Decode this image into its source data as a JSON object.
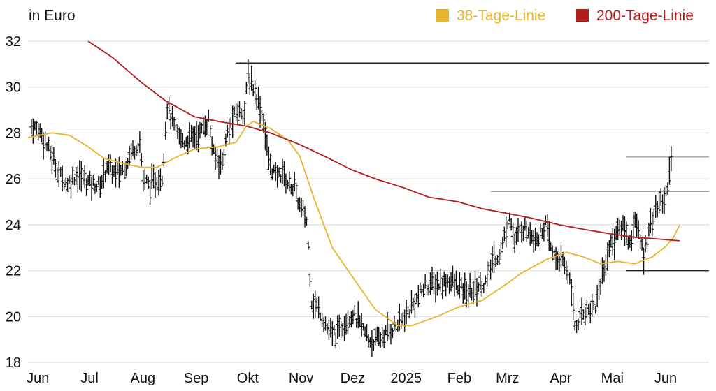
{
  "chart_data": {
    "type": "line",
    "unit_label": "in Euro",
    "legend_position": "top-right",
    "grid": "horizontal",
    "ylim": [
      18,
      32
    ],
    "yticks": [
      18,
      20,
      22,
      24,
      26,
      28,
      30,
      32
    ],
    "xlim": [
      "2024-05-27",
      "2025-06-27"
    ],
    "x_ticks": [
      {
        "label": "Jun",
        "date": "2024-06-01"
      },
      {
        "label": "Jul",
        "date": "2024-07-01"
      },
      {
        "label": "Aug",
        "date": "2024-08-01"
      },
      {
        "label": "Sep",
        "date": "2024-09-01"
      },
      {
        "label": "Okt",
        "date": "2024-10-01"
      },
      {
        "label": "Nov",
        "date": "2024-11-01"
      },
      {
        "label": "Dez",
        "date": "2024-12-01"
      },
      {
        "label": "2025",
        "date": "2025-01-01"
      },
      {
        "label": "Feb",
        "date": "2025-02-01"
      },
      {
        "label": "Mrz",
        "date": "2025-03-01"
      },
      {
        "label": "Apr",
        "date": "2025-04-01"
      },
      {
        "label": "Mai",
        "date": "2025-05-01"
      },
      {
        "label": "Jun",
        "date": "2025-06-01"
      }
    ],
    "series": [
      {
        "name": "38-Tage-Linie",
        "color": "#e9b52c",
        "points": [
          [
            "2024-05-27",
            27.8
          ],
          [
            "2024-06-10",
            28.0
          ],
          [
            "2024-06-20",
            27.9
          ],
          [
            "2024-07-01",
            27.4
          ],
          [
            "2024-07-10",
            26.9
          ],
          [
            "2024-07-20",
            26.7
          ],
          [
            "2024-08-01",
            26.5
          ],
          [
            "2024-08-10",
            26.5
          ],
          [
            "2024-08-20",
            26.9
          ],
          [
            "2024-09-01",
            27.3
          ],
          [
            "2024-09-15",
            27.4
          ],
          [
            "2024-09-25",
            27.6
          ],
          [
            "2024-10-01",
            28.3
          ],
          [
            "2024-10-05",
            28.5
          ],
          [
            "2024-10-15",
            28.2
          ],
          [
            "2024-10-25",
            27.7
          ],
          [
            "2024-11-01",
            27.0
          ],
          [
            "2024-11-10",
            25.0
          ],
          [
            "2024-11-20",
            23.0
          ],
          [
            "2024-12-01",
            21.8
          ],
          [
            "2024-12-15",
            20.3
          ],
          [
            "2024-12-28",
            19.6
          ],
          [
            "2025-01-05",
            19.6
          ],
          [
            "2025-01-20",
            20.0
          ],
          [
            "2025-02-01",
            20.4
          ],
          [
            "2025-02-15",
            20.7
          ],
          [
            "2025-03-01",
            21.4
          ],
          [
            "2025-03-10",
            21.9
          ],
          [
            "2025-03-25",
            22.5
          ],
          [
            "2025-04-05",
            22.8
          ],
          [
            "2025-04-15",
            22.6
          ],
          [
            "2025-04-25",
            22.3
          ],
          [
            "2025-05-05",
            22.4
          ],
          [
            "2025-05-15",
            22.3
          ],
          [
            "2025-05-25",
            22.6
          ],
          [
            "2025-06-01",
            23.0
          ],
          [
            "2025-06-06",
            23.4
          ],
          [
            "2025-06-10",
            24.0
          ]
        ]
      },
      {
        "name": "200-Tage-Linie",
        "color": "#b41c1c",
        "points": [
          [
            "2024-07-01",
            32.0
          ],
          [
            "2024-07-15",
            31.3
          ],
          [
            "2024-08-01",
            30.2
          ],
          [
            "2024-08-15",
            29.4
          ],
          [
            "2024-09-01",
            28.7
          ],
          [
            "2024-09-15",
            28.5
          ],
          [
            "2024-10-01",
            28.3
          ],
          [
            "2024-10-15",
            28.0
          ],
          [
            "2024-11-01",
            27.5
          ],
          [
            "2024-11-15",
            27.0
          ],
          [
            "2024-12-01",
            26.4
          ],
          [
            "2024-12-15",
            26.0
          ],
          [
            "2025-01-01",
            25.6
          ],
          [
            "2025-01-15",
            25.2
          ],
          [
            "2025-02-01",
            25.0
          ],
          [
            "2025-02-15",
            24.7
          ],
          [
            "2025-03-01",
            24.5
          ],
          [
            "2025-03-15",
            24.3
          ],
          [
            "2025-04-01",
            24.0
          ],
          [
            "2025-04-15",
            23.8
          ],
          [
            "2025-05-01",
            23.6
          ],
          [
            "2025-05-15",
            23.45
          ],
          [
            "2025-05-25",
            23.4
          ],
          [
            "2025-06-10",
            23.3
          ]
        ]
      }
    ],
    "price_bars": [
      [
        "2024-05-29",
        28.3
      ],
      [
        "2024-06-03",
        28.1
      ],
      [
        "2024-06-06",
        27.6
      ],
      [
        "2024-06-10",
        27.0
      ],
      [
        "2024-06-14",
        26.2
      ],
      [
        "2024-06-19",
        25.8
      ],
      [
        "2024-06-24",
        26.2
      ],
      [
        "2024-06-28",
        26.0
      ],
      [
        "2024-07-03",
        25.8
      ],
      [
        "2024-07-08",
        25.7
      ],
      [
        "2024-07-12",
        26.6
      ],
      [
        "2024-07-17",
        26.2
      ],
      [
        "2024-07-22",
        26.5
      ],
      [
        "2024-07-26",
        27.2
      ],
      [
        "2024-07-31",
        27.6
      ],
      [
        "2024-08-02",
        26.0
      ],
      [
        "2024-08-06",
        25.7
      ],
      [
        "2024-08-09",
        25.9
      ],
      [
        "2024-08-13",
        26.1
      ],
      [
        "2024-08-16",
        29.2
      ],
      [
        "2024-08-21",
        28.0
      ],
      [
        "2024-08-26",
        27.6
      ],
      [
        "2024-08-30",
        27.8
      ],
      [
        "2024-09-04",
        28.0
      ],
      [
        "2024-09-09",
        28.6
      ],
      [
        "2024-09-12",
        27.0
      ],
      [
        "2024-09-17",
        26.7
      ],
      [
        "2024-09-20",
        28.0
      ],
      [
        "2024-09-25",
        28.9
      ],
      [
        "2024-09-30",
        29.0
      ],
      [
        "2024-10-02",
        30.5
      ],
      [
        "2024-10-04",
        30.2
      ],
      [
        "2024-10-08",
        29.4
      ],
      [
        "2024-10-11",
        28.5
      ],
      [
        "2024-10-14",
        26.8
      ],
      [
        "2024-10-18",
        26.1
      ],
      [
        "2024-10-22",
        26.3
      ],
      [
        "2024-10-25",
        25.8
      ],
      [
        "2024-10-29",
        25.6
      ],
      [
        "2024-11-01",
        24.8
      ],
      [
        "2024-11-05",
        24.2
      ],
      [
        "2024-11-08",
        20.7
      ],
      [
        "2024-11-13",
        20.2
      ],
      [
        "2024-11-18",
        19.3
      ],
      [
        "2024-11-22",
        19.2
      ],
      [
        "2024-11-27",
        19.8
      ],
      [
        "2024-12-02",
        20.1
      ],
      [
        "2024-12-06",
        19.7
      ],
      [
        "2024-12-11",
        19.0
      ],
      [
        "2024-12-16",
        18.9
      ],
      [
        "2024-12-20",
        19.2
      ],
      [
        "2024-12-27",
        19.6
      ],
      [
        "2025-01-02",
        20.0
      ],
      [
        "2025-01-07",
        20.7
      ],
      [
        "2025-01-13",
        21.3
      ],
      [
        "2025-01-17",
        21.4
      ],
      [
        "2025-01-22",
        21.4
      ],
      [
        "2025-01-27",
        21.6
      ],
      [
        "2025-02-03",
        21.2
      ],
      [
        "2025-02-07",
        21.0
      ],
      [
        "2025-02-12",
        21.3
      ],
      [
        "2025-02-17",
        21.5
      ],
      [
        "2025-02-21",
        22.4
      ],
      [
        "2025-02-26",
        22.8
      ],
      [
        "2025-03-03",
        24.5
      ],
      [
        "2025-03-06",
        23.2
      ],
      [
        "2025-03-10",
        23.9
      ],
      [
        "2025-03-14",
        23.8
      ],
      [
        "2025-03-19",
        23.4
      ],
      [
        "2025-03-24",
        24.0
      ],
      [
        "2025-03-28",
        22.7
      ],
      [
        "2025-04-02",
        22.4
      ],
      [
        "2025-04-07",
        21.8
      ],
      [
        "2025-04-10",
        19.6
      ],
      [
        "2025-04-15",
        20.2
      ],
      [
        "2025-04-22",
        20.5
      ],
      [
        "2025-04-25",
        21.5
      ],
      [
        "2025-04-30",
        23.0
      ],
      [
        "2025-05-05",
        23.7
      ],
      [
        "2025-05-08",
        24.0
      ],
      [
        "2025-05-12",
        23.2
      ],
      [
        "2025-05-15",
        24.3
      ],
      [
        "2025-05-20",
        22.6
      ],
      [
        "2025-05-23",
        23.9
      ],
      [
        "2025-05-28",
        24.8
      ],
      [
        "2025-06-02",
        25.3
      ],
      [
        "2025-06-04",
        26.4
      ],
      [
        "2025-06-06",
        27.4
      ]
    ],
    "reference_lines": [
      {
        "y": 31.05,
        "from": "2024-09-25",
        "to": "2025-06-27",
        "style": "black"
      },
      {
        "y": 26.95,
        "from": "2025-05-10",
        "to": "2025-06-27",
        "style": "gray"
      },
      {
        "y": 25.45,
        "from": "2025-02-20",
        "to": "2025-06-27",
        "style": "gray"
      },
      {
        "y": 22.0,
        "from": "2025-05-10",
        "to": "2025-06-27",
        "style": "black"
      }
    ]
  }
}
